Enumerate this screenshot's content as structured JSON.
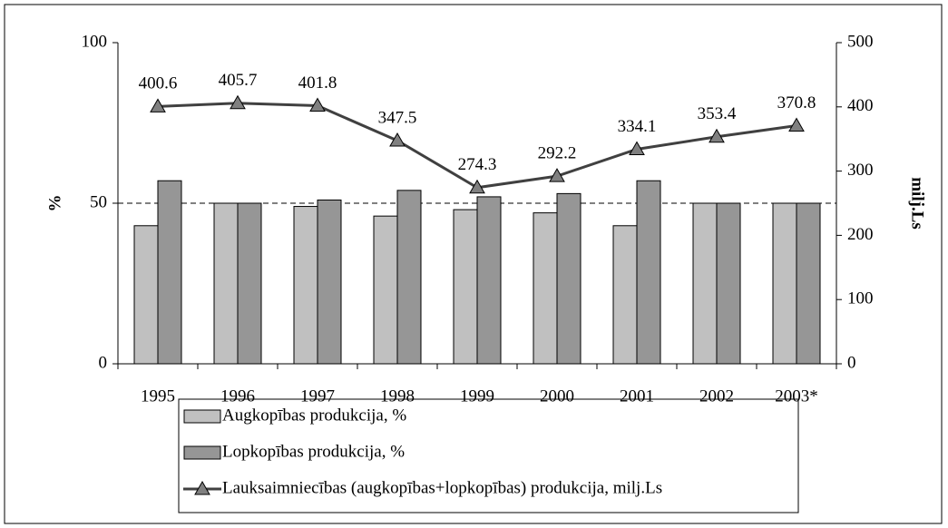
{
  "chart_data": {
    "type": "bar",
    "categories": [
      "1995",
      "1996",
      "1997",
      "1998",
      "1999",
      "2000",
      "2001",
      "2002",
      "2003*"
    ],
    "series": [
      {
        "name": "Augkopības produkcija, %",
        "color": "#c0c0c0",
        "values": [
          43,
          50,
          49,
          46,
          48,
          47,
          43,
          50,
          50
        ]
      },
      {
        "name": "Lopkopības produkcija, %",
        "color": "#969696",
        "values": [
          57,
          50,
          51,
          54,
          52,
          53,
          57,
          50,
          50
        ]
      },
      {
        "name": "Lauksaimniecības (augkopības+lopkopības) produkcija, milj.Ls",
        "type": "line",
        "axis": "y2",
        "color": "#404040",
        "marker_color": "#808080",
        "values": [
          400.6,
          405.7,
          401.8,
          347.5,
          274.3,
          292.2,
          334.1,
          353.4,
          370.8
        ]
      }
    ],
    "ylabel": "%",
    "y2label": "milj.Ls",
    "ylim": [
      0,
      100
    ],
    "yticks": [
      0,
      50,
      100
    ],
    "y2lim": [
      0,
      500
    ],
    "y2ticks": [
      0,
      100,
      200,
      300,
      400,
      500
    ],
    "grid": true
  }
}
